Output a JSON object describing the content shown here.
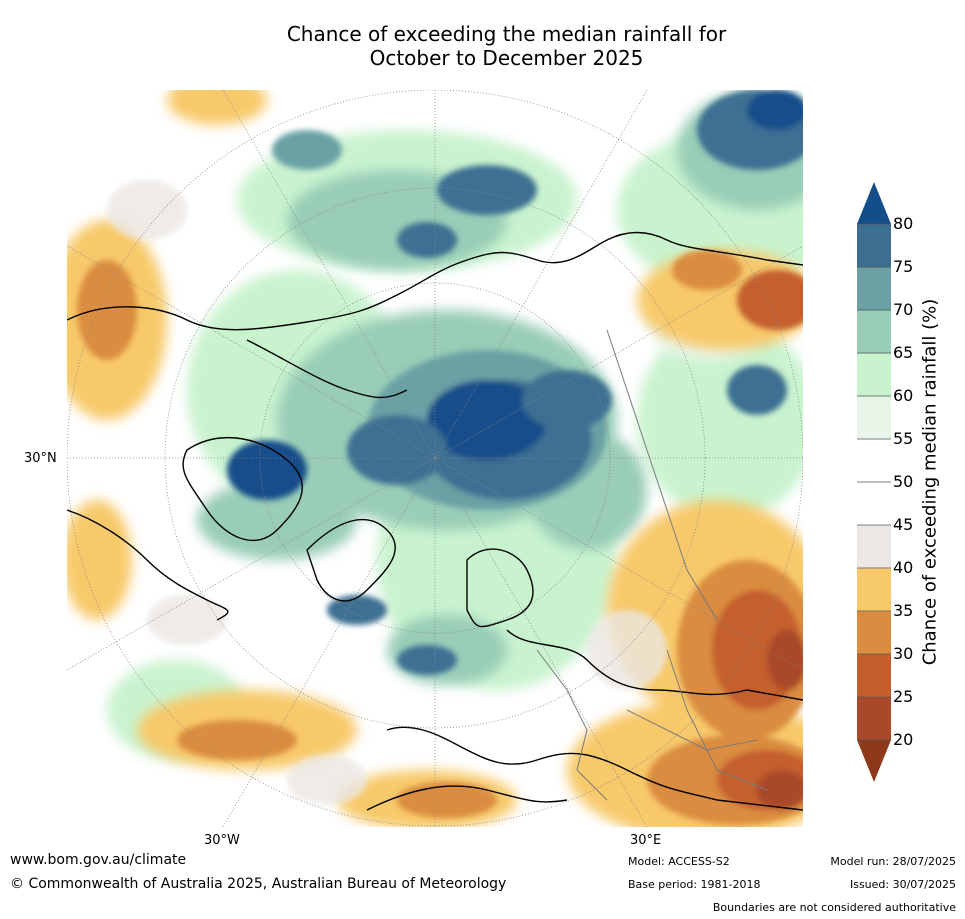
{
  "title": {
    "line1": "Chance of exceeding the median rainfall for",
    "line2": "October to December 2025"
  },
  "map": {
    "lat_labels": [
      "30°N"
    ],
    "lon_labels": [
      "30°W",
      "30°E"
    ],
    "colors": {
      "land_outline": "#000000",
      "border": "#7a7a7a"
    }
  },
  "legend": {
    "label": "Chance of exceeding median rainfall (%)",
    "ticks": [
      "80",
      "75",
      "70",
      "65",
      "60",
      "55",
      "50",
      "45",
      "40",
      "35",
      "30",
      "25",
      "20"
    ],
    "bands": [
      {
        "range": "<20",
        "color": "#8e3a1a"
      },
      {
        "range": "20-25",
        "color": "#a9492a"
      },
      {
        "range": "25-30",
        "color": "#c45e2d"
      },
      {
        "range": "30-35",
        "color": "#da8c40"
      },
      {
        "range": "35-40",
        "color": "#f7c96b"
      },
      {
        "range": "40-45",
        "color": "#ebe7e3"
      },
      {
        "range": "45-50",
        "color": "#ffffff"
      },
      {
        "range": "50-55",
        "color": "#ffffff"
      },
      {
        "range": "55-60",
        "color": "#eaf5ea"
      },
      {
        "range": "60-65",
        "color": "#c9f3cf"
      },
      {
        "range": "65-70",
        "color": "#99cdb7"
      },
      {
        "range": "70-75",
        "color": "#6ba1a4"
      },
      {
        "range": "75-80",
        "color": "#3d6f93"
      },
      {
        "range": ">80",
        "color": "#134d8a"
      }
    ]
  },
  "footer": {
    "website": "www.bom.gov.au/climate",
    "copyright": "© Commonwealth of Australia 2025, Australian Bureau of Meteorology",
    "model": "Model: ACCESS-S2",
    "base_period": "Base period: 1981-2018",
    "model_run": "Model run: 28/07/2025",
    "issued": "Issued: 30/07/2025",
    "disclaimer": "Boundaries are not considered authoritative"
  }
}
